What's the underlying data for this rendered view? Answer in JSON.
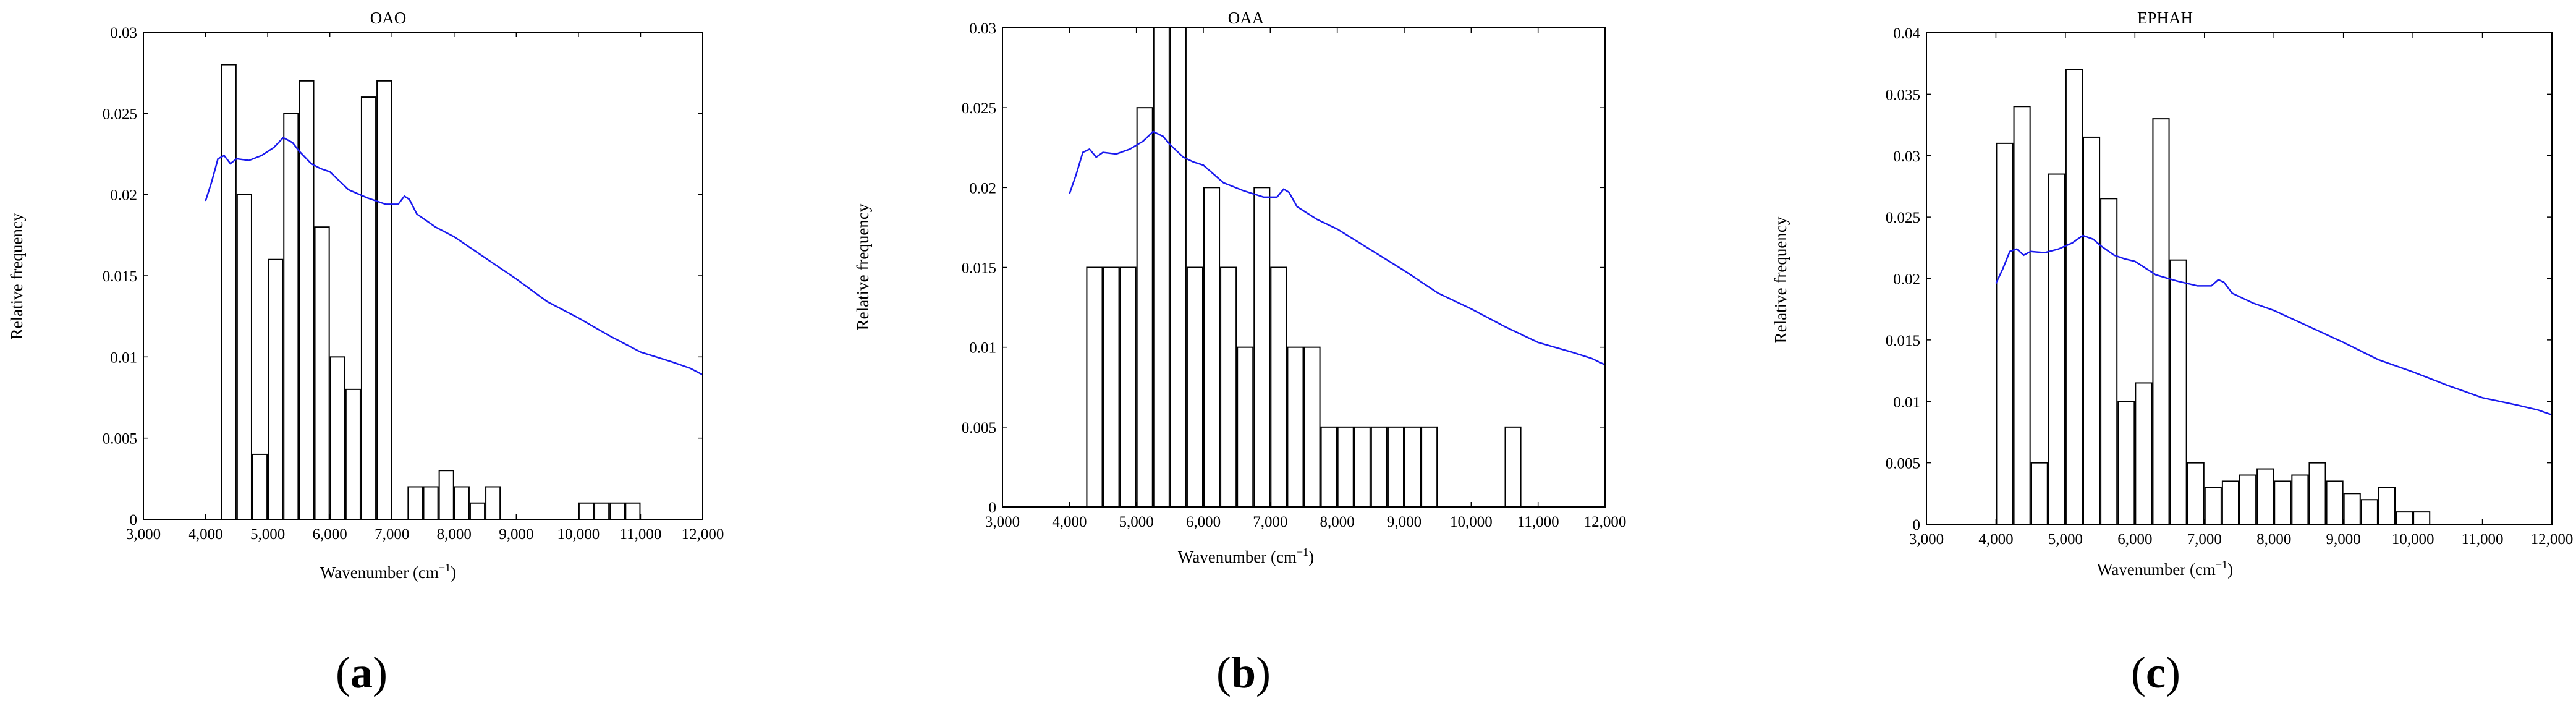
{
  "chart_data": [
    {
      "type": "bar",
      "title": "OAO",
      "panel_label": "(a)",
      "panel_letter": "a",
      "xlabel": "Wavenumber (cm",
      "xlabel_sup": "−1",
      "xlabel_end": ")",
      "ylabel": "Relative frequency",
      "xlim": [
        3000,
        12000
      ],
      "ylim": [
        0,
        0.03
      ],
      "xticks": [
        3000,
        4000,
        5000,
        6000,
        7000,
        8000,
        9000,
        10000,
        11000,
        12000
      ],
      "xtick_labels": [
        "3,000",
        "4,000",
        "5,000",
        "6,000",
        "7,000",
        "8,000",
        "9,000",
        "10,000",
        "11,000",
        "12,000"
      ],
      "yticks": [
        0,
        0.005,
        0.01,
        0.015,
        0.02,
        0.025,
        0.03
      ],
      "ytick_labels": [
        "0",
        "0.005",
        "0.01",
        "0.015",
        "0.02",
        "0.025",
        "0.03"
      ],
      "bin_width": 250,
      "bars": [
        {
          "x": 4000,
          "y": 0.0
        },
        {
          "x": 4250,
          "y": 0.028
        },
        {
          "x": 4500,
          "y": 0.02
        },
        {
          "x": 4750,
          "y": 0.004
        },
        {
          "x": 5000,
          "y": 0.016
        },
        {
          "x": 5250,
          "y": 0.025
        },
        {
          "x": 5500,
          "y": 0.027
        },
        {
          "x": 5750,
          "y": 0.018
        },
        {
          "x": 6000,
          "y": 0.01
        },
        {
          "x": 6250,
          "y": 0.008
        },
        {
          "x": 6500,
          "y": 0.026
        },
        {
          "x": 6750,
          "y": 0.027
        },
        {
          "x": 7250,
          "y": 0.002
        },
        {
          "x": 7500,
          "y": 0.002
        },
        {
          "x": 7750,
          "y": 0.003
        },
        {
          "x": 8000,
          "y": 0.002
        },
        {
          "x": 8250,
          "y": 0.001
        },
        {
          "x": 8500,
          "y": 0.002
        },
        {
          "x": 10000,
          "y": 0.001
        },
        {
          "x": 10250,
          "y": 0.001
        },
        {
          "x": 10500,
          "y": 0.001
        },
        {
          "x": 10750,
          "y": 0.001
        }
      ],
      "spectrum": {
        "color": "#1a1aee",
        "points": [
          [
            4000,
            0.0196
          ],
          [
            4100,
            0.0208
          ],
          [
            4200,
            0.0222
          ],
          [
            4300,
            0.0224
          ],
          [
            4400,
            0.0219
          ],
          [
            4500,
            0.0222
          ],
          [
            4700,
            0.0221
          ],
          [
            4900,
            0.0224
          ],
          [
            5100,
            0.0229
          ],
          [
            5250,
            0.0235
          ],
          [
            5400,
            0.0232
          ],
          [
            5500,
            0.0227
          ],
          [
            5700,
            0.0219
          ],
          [
            5850,
            0.0216
          ],
          [
            6000,
            0.0214
          ],
          [
            6300,
            0.0203
          ],
          [
            6600,
            0.0198
          ],
          [
            6900,
            0.0194
          ],
          [
            7100,
            0.0194
          ],
          [
            7200,
            0.0199
          ],
          [
            7280,
            0.0197
          ],
          [
            7400,
            0.0188
          ],
          [
            7700,
            0.018
          ],
          [
            8000,
            0.0174
          ],
          [
            8500,
            0.0161
          ],
          [
            9000,
            0.0148
          ],
          [
            9500,
            0.0134
          ],
          [
            10000,
            0.0124
          ],
          [
            10500,
            0.0113
          ],
          [
            11000,
            0.0103
          ],
          [
            11500,
            0.0097
          ],
          [
            11800,
            0.0093
          ],
          [
            12000,
            0.0089
          ]
        ]
      }
    },
    {
      "type": "bar",
      "title": "OAA",
      "panel_label": "(b)",
      "panel_letter": "b",
      "xlabel": "Wavenumber (cm",
      "xlabel_sup": "−1",
      "xlabel_end": ")",
      "ylabel": "Relative frequency",
      "xlim": [
        3000,
        12000
      ],
      "ylim": [
        0,
        0.03
      ],
      "xticks": [
        3000,
        4000,
        5000,
        6000,
        7000,
        8000,
        9000,
        10000,
        11000,
        12000
      ],
      "xtick_labels": [
        "3,000",
        "4,000",
        "5,000",
        "6,000",
        "7,000",
        "8,000",
        "9,000",
        "10,000",
        "11,000",
        "12,000"
      ],
      "yticks": [
        0,
        0.005,
        0.01,
        0.015,
        0.02,
        0.025,
        0.03
      ],
      "ytick_labels": [
        "0",
        "0.005",
        "0.01",
        "0.015",
        "0.02",
        "0.025",
        "0.03"
      ],
      "bin_width": 250,
      "bars": [
        {
          "x": 4000,
          "y": 0.0
        },
        {
          "x": 4250,
          "y": 0.015
        },
        {
          "x": 4500,
          "y": 0.015
        },
        {
          "x": 4750,
          "y": 0.015
        },
        {
          "x": 5000,
          "y": 0.025
        },
        {
          "x": 5250,
          "y": 0.03
        },
        {
          "x": 5500,
          "y": 0.03
        },
        {
          "x": 5750,
          "y": 0.015
        },
        {
          "x": 6000,
          "y": 0.02
        },
        {
          "x": 6250,
          "y": 0.015
        },
        {
          "x": 6500,
          "y": 0.01
        },
        {
          "x": 6750,
          "y": 0.02
        },
        {
          "x": 7000,
          "y": 0.015
        },
        {
          "x": 7250,
          "y": 0.01
        },
        {
          "x": 7500,
          "y": 0.01
        },
        {
          "x": 7750,
          "y": 0.005
        },
        {
          "x": 8000,
          "y": 0.005
        },
        {
          "x": 8250,
          "y": 0.005
        },
        {
          "x": 8500,
          "y": 0.005
        },
        {
          "x": 8750,
          "y": 0.005
        },
        {
          "x": 9000,
          "y": 0.005
        },
        {
          "x": 9250,
          "y": 0.005
        },
        {
          "x": 10500,
          "y": 0.005
        }
      ],
      "spectrum": {
        "color": "#1a1aee",
        "points": [
          [
            4000,
            0.0196
          ],
          [
            4100,
            0.0208
          ],
          [
            4200,
            0.0222
          ],
          [
            4300,
            0.0224
          ],
          [
            4400,
            0.0219
          ],
          [
            4500,
            0.0222
          ],
          [
            4700,
            0.0221
          ],
          [
            4900,
            0.0224
          ],
          [
            5100,
            0.0229
          ],
          [
            5250,
            0.0235
          ],
          [
            5400,
            0.0232
          ],
          [
            5500,
            0.0227
          ],
          [
            5700,
            0.0219
          ],
          [
            5850,
            0.0216
          ],
          [
            6000,
            0.0214
          ],
          [
            6300,
            0.0203
          ],
          [
            6600,
            0.0198
          ],
          [
            6900,
            0.0194
          ],
          [
            7100,
            0.0194
          ],
          [
            7200,
            0.0199
          ],
          [
            7280,
            0.0197
          ],
          [
            7400,
            0.0188
          ],
          [
            7700,
            0.018
          ],
          [
            8000,
            0.0174
          ],
          [
            8500,
            0.0161
          ],
          [
            9000,
            0.0148
          ],
          [
            9500,
            0.0134
          ],
          [
            10000,
            0.0124
          ],
          [
            10500,
            0.0113
          ],
          [
            11000,
            0.0103
          ],
          [
            11500,
            0.0097
          ],
          [
            11800,
            0.0093
          ],
          [
            12000,
            0.0089
          ]
        ]
      }
    },
    {
      "type": "bar",
      "title": "EPHAH",
      "panel_label": "(c)",
      "panel_letter": "c",
      "xlabel": "Wavenumber (cm",
      "xlabel_sup": "−1",
      "xlabel_end": ")",
      "ylabel": "Relative frequency",
      "xlim": [
        3000,
        12000
      ],
      "ylim": [
        0,
        0.04
      ],
      "xticks": [
        3000,
        4000,
        5000,
        6000,
        7000,
        8000,
        9000,
        10000,
        11000,
        12000
      ],
      "xtick_labels": [
        "3,000",
        "4,000",
        "5,000",
        "6,000",
        "7,000",
        "8,000",
        "9,000",
        "10,000",
        "11,000",
        "12,000"
      ],
      "yticks": [
        0,
        0.005,
        0.01,
        0.015,
        0.02,
        0.025,
        0.03,
        0.035,
        0.04
      ],
      "ytick_labels": [
        "0",
        "0.005",
        "0.01",
        "0.015",
        "0.02",
        "0.025",
        "0.03",
        "0.035",
        "0.04"
      ],
      "bin_width": 250,
      "bars": [
        {
          "x": 4000,
          "y": 0.031
        },
        {
          "x": 4250,
          "y": 0.034
        },
        {
          "x": 4500,
          "y": 0.005
        },
        {
          "x": 4750,
          "y": 0.0285
        },
        {
          "x": 5000,
          "y": 0.037
        },
        {
          "x": 5250,
          "y": 0.0315
        },
        {
          "x": 5500,
          "y": 0.0265
        },
        {
          "x": 5750,
          "y": 0.01
        },
        {
          "x": 6000,
          "y": 0.0115
        },
        {
          "x": 6250,
          "y": 0.033
        },
        {
          "x": 6500,
          "y": 0.0215
        },
        {
          "x": 6750,
          "y": 0.005
        },
        {
          "x": 7000,
          "y": 0.003
        },
        {
          "x": 7250,
          "y": 0.0035
        },
        {
          "x": 7500,
          "y": 0.004
        },
        {
          "x": 7750,
          "y": 0.0045
        },
        {
          "x": 8000,
          "y": 0.0035
        },
        {
          "x": 8250,
          "y": 0.004
        },
        {
          "x": 8500,
          "y": 0.005
        },
        {
          "x": 8750,
          "y": 0.0035
        },
        {
          "x": 9000,
          "y": 0.0025
        },
        {
          "x": 9250,
          "y": 0.002
        },
        {
          "x": 9500,
          "y": 0.003
        },
        {
          "x": 9750,
          "y": 0.001
        },
        {
          "x": 10000,
          "y": 0.001
        }
      ],
      "spectrum": {
        "color": "#1a1aee",
        "points": [
          [
            4000,
            0.0196
          ],
          [
            4100,
            0.0208
          ],
          [
            4200,
            0.0222
          ],
          [
            4300,
            0.0224
          ],
          [
            4400,
            0.0219
          ],
          [
            4500,
            0.0222
          ],
          [
            4700,
            0.0221
          ],
          [
            4900,
            0.0224
          ],
          [
            5100,
            0.0229
          ],
          [
            5250,
            0.0235
          ],
          [
            5400,
            0.0232
          ],
          [
            5500,
            0.0227
          ],
          [
            5700,
            0.0219
          ],
          [
            5850,
            0.0216
          ],
          [
            6000,
            0.0214
          ],
          [
            6300,
            0.0203
          ],
          [
            6600,
            0.0198
          ],
          [
            6900,
            0.0194
          ],
          [
            7100,
            0.0194
          ],
          [
            7200,
            0.0199
          ],
          [
            7280,
            0.0197
          ],
          [
            7400,
            0.0188
          ],
          [
            7700,
            0.018
          ],
          [
            8000,
            0.0174
          ],
          [
            8500,
            0.0161
          ],
          [
            9000,
            0.0148
          ],
          [
            9500,
            0.0134
          ],
          [
            10000,
            0.0124
          ],
          [
            10500,
            0.0113
          ],
          [
            11000,
            0.0103
          ],
          [
            11500,
            0.0097
          ],
          [
            11800,
            0.0093
          ],
          [
            12000,
            0.0089
          ]
        ]
      }
    }
  ]
}
